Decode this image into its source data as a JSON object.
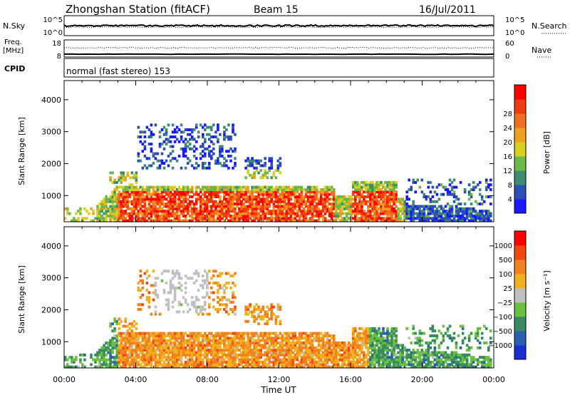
{
  "header": {
    "station": "Zhongshan Station (fitACF)",
    "beam": "Beam 15",
    "date": "16/Jul/2011"
  },
  "top_panels": {
    "nsky": {
      "label": "N.Sky",
      "left_ticks": [
        "10^5",
        "10^0"
      ],
      "right_ticks": [
        "10^5",
        "10^0"
      ],
      "right_label": "N.Search"
    },
    "freq": {
      "label_1": "Freq.",
      "label_2": "[MHz]",
      "left_ticks": [
        "18",
        "8"
      ],
      "right_ticks": [
        "60",
        "0"
      ],
      "right_label": "Nave"
    },
    "cpid": {
      "label": "CPID",
      "text": "normal (fast stereo) 153"
    }
  },
  "chart_data": [
    {
      "type": "heatmap",
      "title": "",
      "xlabel": "",
      "ylabel": "Slant Range [km]",
      "xlim": [
        0,
        24
      ],
      "ylim": [
        180,
        4600
      ],
      "x_tick_labels": [
        "00:00",
        "04:00",
        "08:00",
        "12:00",
        "16:00",
        "20:00",
        "00:00"
      ],
      "y_ticks": [
        1000,
        2000,
        3000,
        4000
      ],
      "colorbar": {
        "label": "Power [dB]",
        "ticks": [
          "4",
          "8",
          "12",
          "16",
          "20",
          "24",
          "28"
        ],
        "colors": [
          "#1a1aff",
          "#2b4fb3",
          "#3f8a70",
          "#6cb84a",
          "#d8d020",
          "#f0a020",
          "#f07020",
          "#f03a10",
          "#ff0000"
        ]
      }
    },
    {
      "type": "heatmap",
      "title": "",
      "xlabel": "Time UT",
      "ylabel": "Slant Range [km]",
      "xlim": [
        0,
        24
      ],
      "ylim": [
        180,
        4600
      ],
      "x_tick_labels": [
        "00:00",
        "04:00",
        "08:00",
        "12:00",
        "16:00",
        "20:00",
        "00:00"
      ],
      "y_ticks": [
        1000,
        2000,
        3000,
        4000
      ],
      "colorbar": {
        "label": "Velocity [m s⁻¹]",
        "ticks": [
          "1000",
          "500",
          "100",
          "25",
          "−25",
          "−100",
          "−500",
          "−1000"
        ],
        "colors": [
          "#1a2fd0",
          "#2a5fb0",
          "#3a8a60",
          "#6ac040",
          "#c0c0c0",
          "#f0b020",
          "#f08020",
          "#f04a10",
          "#ff0000"
        ]
      }
    }
  ]
}
